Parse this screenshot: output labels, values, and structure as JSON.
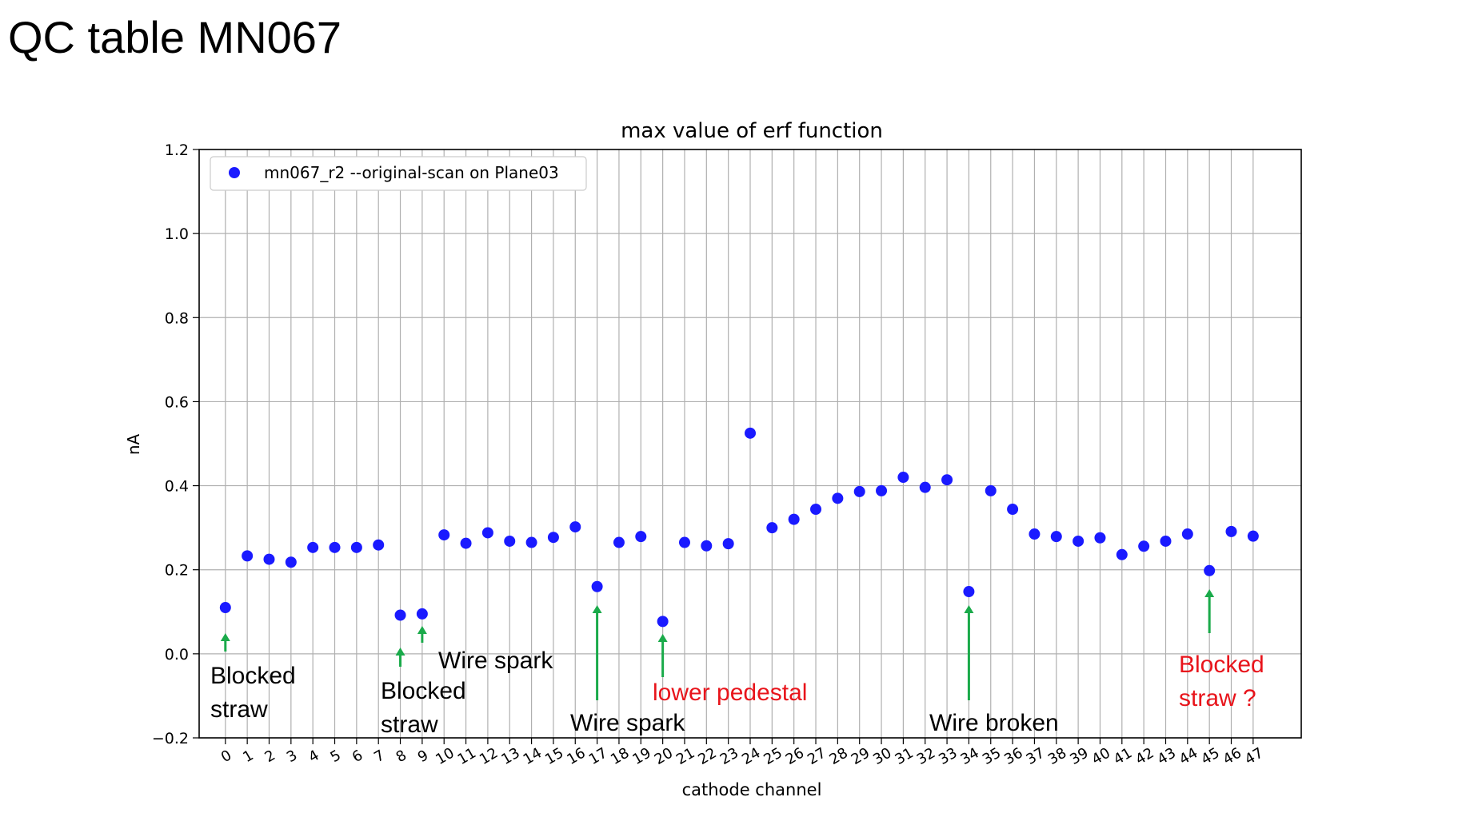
{
  "slide": {
    "title": "QC table MN067"
  },
  "chart_data": {
    "type": "scatter",
    "title": "max value of erf function",
    "xlabel": "cathode channel",
    "ylabel": "nA",
    "ylim": [
      -0.2,
      1.2
    ],
    "xlim": [
      -1.2,
      49.2
    ],
    "yticks": [
      "−0.2",
      "0.0",
      "0.2",
      "0.4",
      "0.6",
      "0.8",
      "1.0",
      "1.2"
    ],
    "ytick_values": [
      -0.2,
      0.0,
      0.2,
      0.4,
      0.6,
      0.8,
      1.0,
      1.2
    ],
    "xticks": [
      "0",
      "1",
      "2",
      "3",
      "4",
      "5",
      "6",
      "7",
      "8",
      "9",
      "10",
      "11",
      "12",
      "13",
      "14",
      "15",
      "16",
      "17",
      "18",
      "19",
      "20",
      "21",
      "22",
      "23",
      "24",
      "25",
      "26",
      "27",
      "28",
      "29",
      "30",
      "31",
      "32",
      "33",
      "34",
      "35",
      "36",
      "37",
      "38",
      "39",
      "40",
      "41",
      "42",
      "43",
      "44",
      "45",
      "46",
      "47"
    ],
    "grid": true,
    "legend_position": "upper-left",
    "series": [
      {
        "name": "mn067_r2 --original-scan on Plane03",
        "color": "#1a1aff",
        "x": [
          0,
          1,
          2,
          3,
          4,
          5,
          6,
          7,
          8,
          9,
          10,
          11,
          12,
          13,
          14,
          15,
          16,
          17,
          18,
          19,
          20,
          21,
          22,
          23,
          24,
          25,
          26,
          27,
          28,
          29,
          30,
          31,
          32,
          33,
          34,
          35,
          36,
          37,
          38,
          39,
          40,
          41,
          42,
          43,
          44,
          45,
          46,
          47
        ],
        "y": [
          0.11,
          0.233,
          0.225,
          0.218,
          0.253,
          0.253,
          0.253,
          0.259,
          0.092,
          0.095,
          0.283,
          0.263,
          0.288,
          0.268,
          0.265,
          0.277,
          0.302,
          0.16,
          0.265,
          0.279,
          0.077,
          0.265,
          0.257,
          0.262,
          0.525,
          0.3,
          0.32,
          0.344,
          0.37,
          0.386,
          0.388,
          0.42,
          0.396,
          0.414,
          0.148,
          0.388,
          0.344,
          0.285,
          0.279,
          0.268,
          0.276,
          0.236,
          0.256,
          0.268,
          0.285,
          0.198,
          0.291,
          0.28
        ]
      }
    ],
    "annotations": [
      {
        "lines": [
          "Blocked",
          "straw"
        ],
        "color": "#000000",
        "channel": 0
      },
      {
        "lines": [
          "Blocked",
          "straw"
        ],
        "color": "#000000",
        "channel": 8
      },
      {
        "lines": [
          "Wire spark"
        ],
        "color": "#000000",
        "channel": 9
      },
      {
        "lines": [
          "Wire spark"
        ],
        "color": "#000000",
        "channel": 17
      },
      {
        "lines": [
          "lower pedestal"
        ],
        "color": "#e8141b",
        "channel": 20
      },
      {
        "lines": [
          "Wire broken"
        ],
        "color": "#000000",
        "channel": 34
      },
      {
        "lines": [
          "Blocked",
          "straw ?"
        ],
        "color": "#e8141b",
        "channel": 45
      }
    ],
    "arrow_color": "#1aaa4a"
  }
}
